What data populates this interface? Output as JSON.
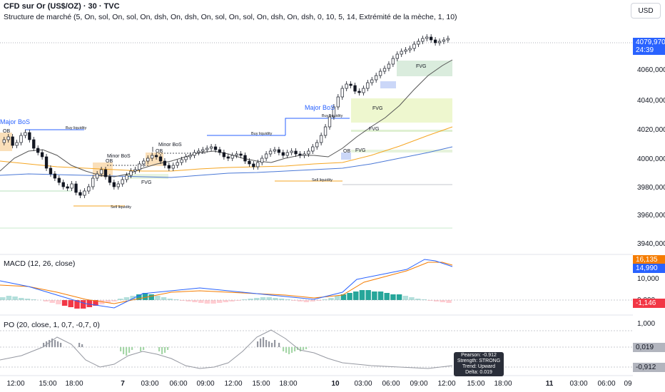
{
  "header": {
    "symbol": "CFD sur Or (US$/OZ) · 30 · TVC",
    "indicator": "Structure de marché (5, On, sol, On, sol, On, dsh, On, dsh, On, sol, On, sol, On, dsh, On, dsh, 0, 10, 5, 14, Extrémité de la mèche, 1, 10)",
    "currency_button": "USD"
  },
  "price_axis": {
    "ticks": [
      "4060,000",
      "4040,000",
      "4020,000",
      "4000,000",
      "3980,000",
      "3960,000",
      "3940,000"
    ],
    "last_price": "4079,970",
    "countdown": "24:39",
    "last_price_color": "#2962ff"
  },
  "macd_pane": {
    "label": "MACD (12, 26, close)",
    "ticks": [
      "10,000",
      "0,000"
    ],
    "tags": {
      "signal": "16,135",
      "macd": "14,990",
      "histogram": "-1,146"
    },
    "colors": {
      "signal": "#f57c00",
      "macd": "#2962ff",
      "histogram": "#f23645"
    }
  },
  "po_pane": {
    "label": "PO (20, close, 1, 0,7, -0,7, 0)",
    "ticks": [
      "1,000"
    ],
    "tags": {
      "value": "0,019",
      "level": "-0,912"
    },
    "tooltip": [
      "Pearson: -0.912",
      "Strength: STRONG",
      "Trend: Upward",
      "Delta: 0.019"
    ]
  },
  "time_axis": [
    "12:00",
    "15:00",
    "18:00",
    "7",
    "03:00",
    "06:00",
    "09:00",
    "12:00",
    "15:00",
    "18:00",
    "10",
    "03:00",
    "06:00",
    "09:00",
    "12:00",
    "15:00",
    "18:00",
    "11",
    "03:00",
    "06:00",
    "09"
  ],
  "annotations": {
    "major_bos_1": "Major BoS",
    "major_bos_2": "Major BoS",
    "minor_bos_1": "Minor BoS",
    "minor_bos_2": "Minor BoS",
    "ob_1": "OB",
    "ob_2": "OB",
    "ob_3": "OB",
    "ob_4": "OB",
    "fvg_1": "FVG",
    "fvg_2": "FVG",
    "fvg_3": "FVG",
    "fvg_4": "FVG",
    "fvg_5": "FVG",
    "buy_liq_1": "Buy liquidity",
    "buy_liq_2": "Buy liquidity",
    "buy_liq_3": "Buy liquidity",
    "sell_liq_1": "Sell liquidity",
    "sell_liq_2": "Sell liquidity"
  }
}
